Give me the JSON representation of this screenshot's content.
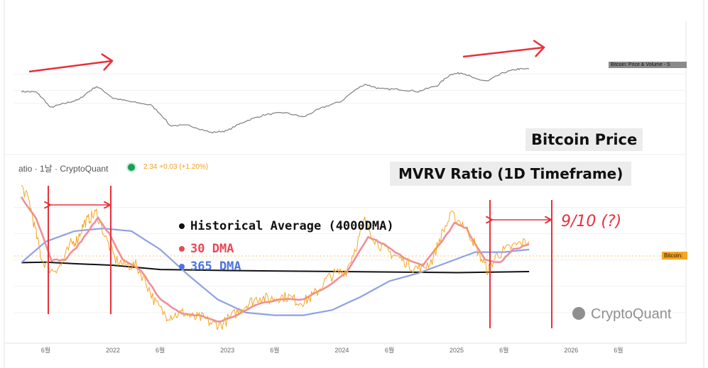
{
  "panels": {
    "price_title": "Bitcoin Price",
    "mvrv_title": "MVRV Ratio (1D Timeframe)",
    "price_series_tag": "Bitcoin: Price & Volume - S",
    "ratio_series_tag": "Bitcoin:",
    "indicator_name": "atio · 1날 · CryptoQuant",
    "indicator_value": "2.34 +0.03 (+1.20%)",
    "watermark": "CryptoQuant"
  },
  "legend": {
    "historical": "Historical Average (4000DMA)",
    "dma30": "30 DMA",
    "dma365": "365 DMA"
  },
  "annotation": "9/10 (?)",
  "colors": {
    "price_line": "#888888",
    "ratio_line": "#f5a623",
    "dma30_line": "#ef8f9a",
    "dma365_line": "#8ea1e6",
    "hist_line": "#111111",
    "annotation": "#e8303a"
  },
  "chart_data": [
    {
      "type": "line",
      "x_range": [
        "2021-03-15",
        "2026-12-31"
      ],
      "series": [
        {
          "x": [
            "2021-03-15",
            "2021-05-01",
            "2021-06-15",
            "2021-08-01",
            "2021-09-15",
            "2021-11-10",
            "2022-01-01",
            "2022-03-01",
            "2022-05-01",
            "2022-07-01",
            "2022-09-01",
            "2022-11-10",
            "2023-01-01",
            "2023-03-01",
            "2023-05-01",
            "2023-07-01",
            "2023-09-01",
            "2023-11-01",
            "2024-01-01",
            "2024-03-14",
            "2024-05-01",
            "2024-07-01",
            "2024-09-01",
            "2024-11-01",
            "2024-12-15",
            "2025-01-20",
            "2025-03-01",
            "2025-04-10",
            "2025-06-01",
            "2025-07-15",
            "2025-08-20"
          ],
          "values": [
            58000,
            57000,
            35000,
            40000,
            45000,
            68000,
            47000,
            42000,
            38000,
            20000,
            20000,
            16000,
            17000,
            23000,
            28000,
            30000,
            26000,
            35000,
            43000,
            73000,
            63000,
            62000,
            58000,
            70000,
            100000,
            104000,
            86000,
            80000,
            105000,
            117000,
            118000
          ]
        }
      ],
      "legend": [
        "Bitcoin: Price & Volume - S"
      ],
      "grid": true
    },
    {
      "type": "line",
      "x_ticks": [
        "6월",
        "2022",
        "6월",
        "2023",
        "6월",
        "2024",
        "6월",
        "2025",
        "6월",
        "2026",
        "6월"
      ],
      "x_range": [
        "2021-03-15",
        "2026-12-31"
      ],
      "series": [
        {
          "name": "Bitcoin:",
          "x": [
            "2021-03-15",
            "2021-04-10",
            "2021-05-01",
            "2021-05-20",
            "2021-06-20",
            "2021-07-20",
            "2021-08-20",
            "2021-09-10",
            "2021-10-01",
            "2021-10-20",
            "2021-11-10",
            "2021-12-10",
            "2022-01-10",
            "2022-02-10",
            "2022-03-15",
            "2022-04-15",
            "2022-05-15",
            "2022-06-18",
            "2022-07-15",
            "2022-08-15",
            "2022-09-15",
            "2022-10-15",
            "2022-11-15",
            "2022-12-15",
            "2023-01-20",
            "2023-02-20",
            "2023-03-15",
            "2023-04-15",
            "2023-05-15",
            "2023-06-15",
            "2023-07-15",
            "2023-08-20",
            "2023-09-15",
            "2023-10-15",
            "2023-11-15",
            "2023-12-15",
            "2024-01-15",
            "2024-02-15",
            "2024-03-14",
            "2024-04-15",
            "2024-05-15",
            "2024-06-15",
            "2024-07-15",
            "2024-08-15",
            "2024-09-15",
            "2024-10-15",
            "2024-11-15",
            "2024-12-15",
            "2025-01-20",
            "2025-02-20",
            "2025-03-15",
            "2025-04-10",
            "2025-05-10",
            "2025-06-10",
            "2025-07-15",
            "2025-08-20"
          ],
          "values": [
            3.4,
            3.1,
            2.5,
            2.0,
            1.8,
            1.9,
            2.3,
            2.4,
            2.7,
            2.8,
            2.9,
            2.4,
            2.0,
            1.9,
            1.9,
            1.6,
            1.2,
            0.95,
            0.95,
            1.0,
            0.9,
            0.9,
            0.78,
            0.78,
            0.95,
            1.1,
            1.2,
            1.3,
            1.25,
            1.3,
            1.3,
            1.2,
            1.25,
            1.4,
            1.65,
            1.75,
            1.8,
            2.25,
            2.75,
            2.4,
            2.2,
            2.1,
            2.0,
            1.85,
            1.85,
            2.0,
            2.5,
            2.85,
            2.7,
            2.4,
            2.1,
            1.8,
            2.1,
            2.2,
            2.3,
            2.35
          ]
        },
        {
          "name": "30 DMA",
          "x": [
            "2021-03-15",
            "2021-05-01",
            "2021-06-20",
            "2021-08-01",
            "2021-09-15",
            "2021-10-20",
            "2021-11-15",
            "2021-12-20",
            "2022-02-01",
            "2022-04-01",
            "2022-06-01",
            "2022-08-01",
            "2022-10-01",
            "2022-12-01",
            "2023-02-01",
            "2023-04-01",
            "2023-06-15",
            "2023-09-01",
            "2023-11-15",
            "2024-01-15",
            "2024-03-25",
            "2024-05-15",
            "2024-07-15",
            "2024-09-15",
            "2024-11-15",
            "2024-12-25",
            "2025-02-01",
            "2025-04-01",
            "2025-05-20",
            "2025-07-01",
            "2025-08-20"
          ],
          "values": [
            3.2,
            2.8,
            2.0,
            2.0,
            2.3,
            2.6,
            2.8,
            2.5,
            2.0,
            1.8,
            1.25,
            1.0,
            0.95,
            0.82,
            0.95,
            1.15,
            1.25,
            1.25,
            1.5,
            1.75,
            2.45,
            2.3,
            2.05,
            1.9,
            2.35,
            2.7,
            2.6,
            2.0,
            1.95,
            2.2,
            2.3
          ]
        },
        {
          "name": "365 DMA",
          "x": [
            "2021-03-15",
            "2021-06-01",
            "2021-09-01",
            "2021-12-01",
            "2022-03-01",
            "2022-06-01",
            "2022-09-01",
            "2022-12-01",
            "2023-03-01",
            "2023-06-01",
            "2023-09-01",
            "2023-12-01",
            "2024-03-01",
            "2024-06-01",
            "2024-09-01",
            "2024-12-01",
            "2025-03-01",
            "2025-06-01",
            "2025-08-20"
          ],
          "values": [
            1.95,
            2.35,
            2.55,
            2.6,
            2.55,
            2.2,
            1.7,
            1.25,
            1.0,
            0.95,
            0.95,
            1.05,
            1.3,
            1.6,
            1.75,
            1.95,
            2.15,
            2.15,
            2.2
          ]
        },
        {
          "name": "Historical Average (4000DMA)",
          "x": [
            "2021-03-15",
            "2021-06-01",
            "2021-09-01",
            "2022-01-01",
            "2022-06-01",
            "2023-01-01",
            "2024-01-01",
            "2025-01-01",
            "2025-08-20"
          ],
          "values": [
            1.95,
            1.96,
            1.93,
            1.9,
            1.82,
            1.8,
            1.78,
            1.76,
            1.78
          ]
        }
      ],
      "legend": [
        "Historical Average (4000DMA)",
        "30 DMA",
        "365 DMA"
      ],
      "grid": true
    }
  ]
}
